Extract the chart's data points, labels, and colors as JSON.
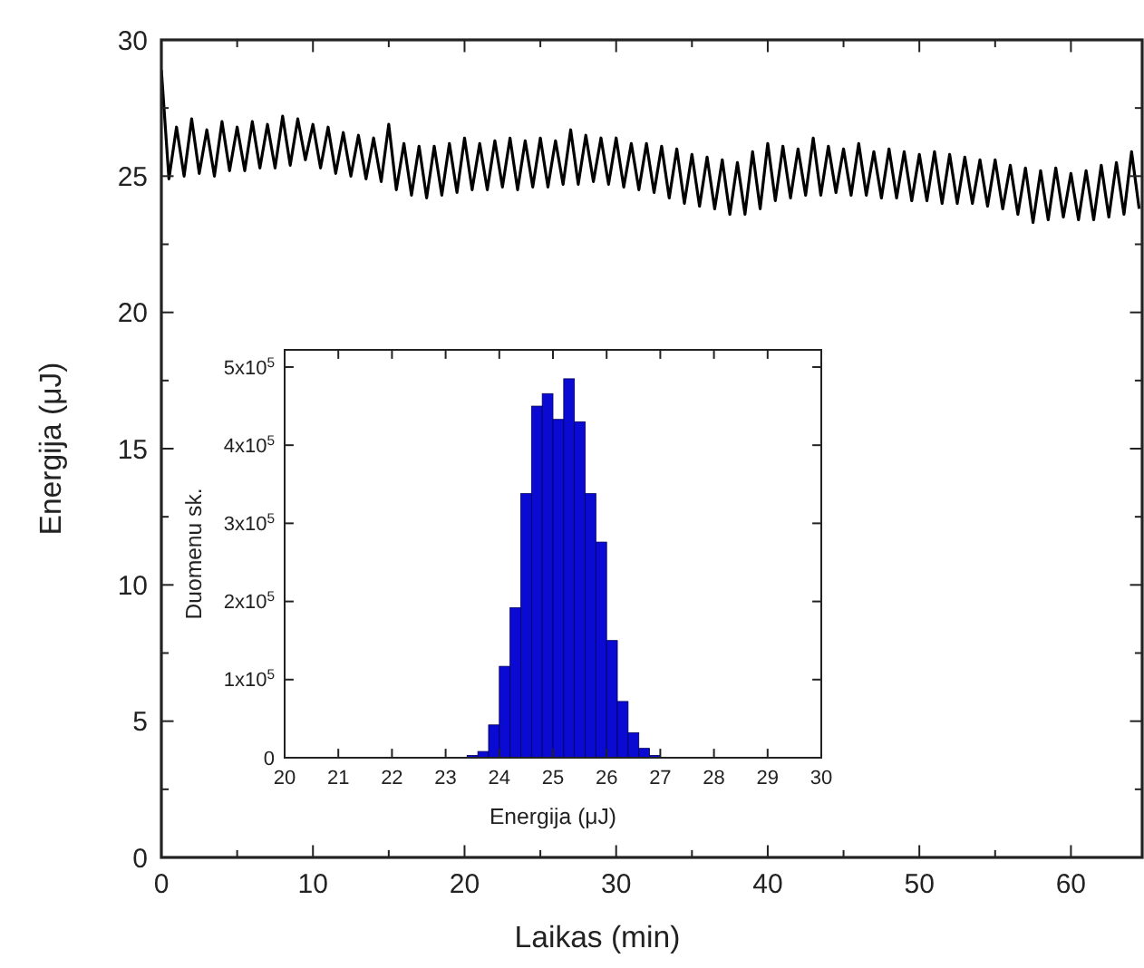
{
  "chart_data": [
    {
      "type": "line",
      "xlabel": "Laikas (min)",
      "ylabel": "Energija (μJ)",
      "xlim": [
        0,
        64.7
      ],
      "ylim": [
        0,
        30
      ],
      "xticks": [
        0,
        {
          "value": 5,
          "label": null
        },
        10,
        {
          "value": 15,
          "label": null
        },
        20,
        {
          "value": 25,
          "label": null
        },
        30,
        {
          "value": 35,
          "label": null
        },
        40,
        {
          "value": 45,
          "label": null
        },
        50,
        {
          "value": 55,
          "label": null
        },
        60
      ],
      "yticks": [
        0,
        {
          "value": 2.5,
          "label": null
        },
        5,
        {
          "value": 7.5,
          "label": null
        },
        10,
        {
          "value": 12.5,
          "label": null
        },
        15,
        {
          "value": 17.5,
          "label": null
        },
        20,
        {
          "value": 22.5,
          "label": null
        },
        25,
        {
          "value": 27.5,
          "label": null
        },
        30
      ],
      "grid": false,
      "series": [
        {
          "color": "#000000",
          "x": [
            0,
            0.5,
            1,
            1.5,
            2,
            2.5,
            3,
            3.5,
            4,
            4.5,
            5,
            5.5,
            6,
            6.5,
            7,
            7.5,
            8,
            8.5,
            9,
            9.5,
            10,
            10.5,
            11,
            11.5,
            12,
            12.5,
            13,
            13.5,
            14,
            14.5,
            15,
            15.5,
            16,
            16.5,
            17,
            17.5,
            18,
            18.5,
            19,
            19.5,
            20,
            20.5,
            21,
            21.5,
            22,
            22.5,
            23,
            23.5,
            24,
            24.5,
            25,
            25.5,
            26,
            26.5,
            27,
            27.5,
            28,
            28.5,
            29,
            29.5,
            30,
            30.5,
            31,
            31.5,
            32,
            32.5,
            33,
            33.5,
            34,
            34.5,
            35,
            35.5,
            36,
            36.5,
            37,
            37.5,
            38,
            38.5,
            39,
            39.5,
            40,
            40.5,
            41,
            41.5,
            42,
            42.5,
            43,
            43.5,
            44,
            44.5,
            45,
            45.5,
            46,
            46.5,
            47,
            47.5,
            48,
            48.5,
            49,
            49.5,
            50,
            50.5,
            51,
            51.5,
            52,
            52.5,
            53,
            53.5,
            54,
            54.5,
            55,
            55.5,
            56,
            56.5,
            57,
            57.5,
            58,
            58.5,
            59,
            59.5,
            60,
            60.5,
            61,
            61.5,
            62,
            62.5,
            63,
            63.5,
            64,
            64.5
          ],
          "values": [
            28.9,
            24.9,
            26.8,
            25.0,
            27.1,
            25.1,
            26.7,
            25.0,
            27.0,
            25.2,
            26.8,
            25.2,
            27.0,
            25.3,
            26.9,
            25.3,
            27.2,
            25.4,
            27.1,
            25.6,
            26.9,
            25.3,
            26.8,
            25.1,
            26.6,
            25.0,
            26.5,
            24.9,
            26.4,
            24.8,
            26.9,
            24.5,
            26.2,
            24.3,
            26.1,
            24.2,
            26.1,
            24.3,
            26.2,
            24.4,
            26.4,
            24.5,
            26.2,
            24.5,
            26.3,
            24.6,
            26.4,
            24.5,
            26.3,
            24.6,
            26.4,
            24.6,
            26.3,
            24.7,
            26.7,
            24.7,
            26.5,
            24.8,
            26.4,
            24.7,
            26.4,
            24.6,
            26.2,
            24.5,
            26.2,
            24.4,
            26.1,
            24.2,
            26.0,
            24.0,
            25.8,
            23.9,
            25.7,
            23.8,
            25.6,
            23.6,
            25.5,
            23.6,
            25.9,
            23.8,
            26.2,
            24.1,
            26.1,
            24.2,
            26.0,
            24.3,
            26.4,
            24.3,
            26.1,
            24.4,
            26.0,
            24.3,
            26.2,
            24.3,
            25.9,
            24.2,
            26.0,
            24.2,
            25.9,
            24.1,
            25.8,
            24.1,
            25.9,
            24.0,
            25.8,
            24.0,
            25.7,
            24.0,
            25.6,
            23.9,
            25.6,
            23.8,
            25.4,
            23.6,
            25.3,
            23.3,
            25.2,
            23.4,
            25.3,
            23.5,
            25.1,
            23.4,
            25.2,
            23.4,
            25.4,
            23.5,
            25.5,
            23.6,
            25.9,
            23.8
          ]
        }
      ]
    },
    {
      "type": "histogram",
      "xlabel": "Energija (μJ)",
      "ylabel": "Duomenu sk.",
      "color": "#0a0ad2",
      "xlim": [
        20,
        30
      ],
      "ylim": [
        0,
        522000
      ],
      "xticks": [
        20,
        21,
        22,
        23,
        24,
        25,
        26,
        27,
        28,
        29,
        30
      ],
      "yticks": [
        0,
        {
          "value": 100000,
          "label": "1x10$^{5}$"
        },
        {
          "value": 200000,
          "label": "2x10$^{5}$"
        },
        {
          "value": 300000,
          "label": "3x10$^{5}$"
        },
        {
          "value": 400000,
          "label": "4x10$^{5}$"
        },
        {
          "value": 500000,
          "label": "5x10$^{5}$"
        }
      ],
      "grid": false,
      "bins": [
        23.4,
        23.6,
        23.8,
        24.0,
        24.2,
        24.4,
        24.6,
        24.8,
        25.0,
        25.2,
        25.4,
        25.6,
        25.8,
        26.0,
        26.2,
        26.4,
        26.6,
        26.8,
        27.0
      ],
      "values": [
        3000,
        8000,
        42000,
        117000,
        192000,
        338000,
        450000,
        466000,
        433000,
        485000,
        430000,
        338000,
        276000,
        150000,
        72000,
        32000,
        12000,
        3000
      ]
    }
  ]
}
